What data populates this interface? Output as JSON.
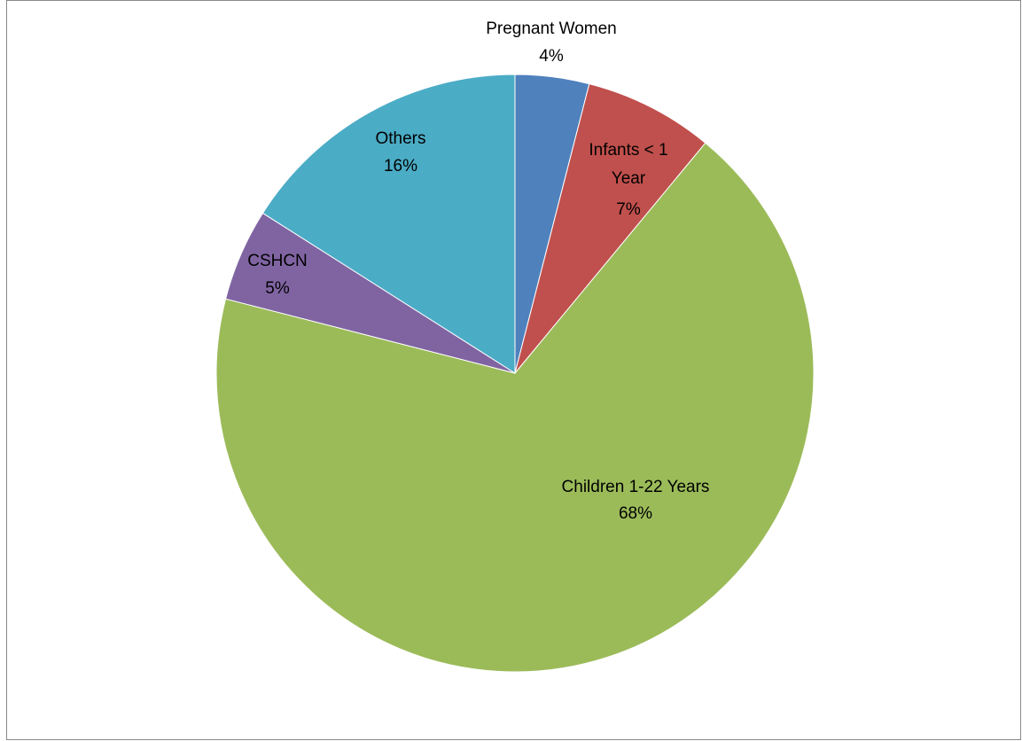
{
  "chart_data": {
    "type": "pie",
    "categories": [
      "Pregnant Women",
      "Infants < 1 Year",
      "Children 1-22 Years",
      "CSHCN",
      "Others"
    ],
    "values": [
      4,
      7,
      68,
      5,
      16
    ],
    "value_labels": [
      "4%",
      "7%",
      "68%",
      "5%",
      "16%"
    ],
    "colors": [
      "#4f81bd",
      "#c0504d",
      "#9bbb59",
      "#8064a2",
      "#4bacc6"
    ]
  }
}
